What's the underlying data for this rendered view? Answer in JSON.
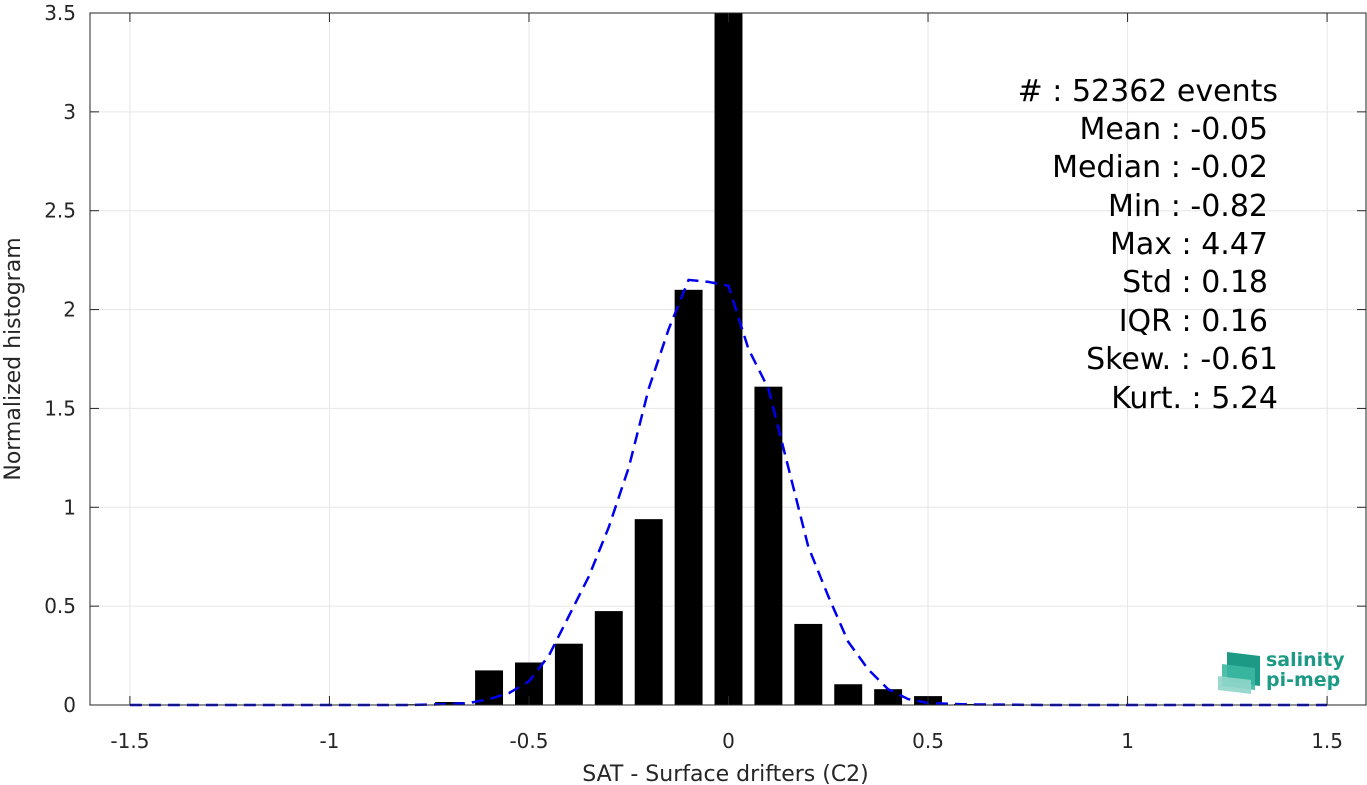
{
  "chart_data": {
    "type": "bar",
    "xlabel": "SAT - Surface drifters (C2)",
    "ylabel": "Normalized histogram",
    "xlim": [
      -1.6,
      1.6
    ],
    "ylim": [
      0,
      3.5
    ],
    "xticks": [
      -1.5,
      -1,
      -0.5,
      0,
      0.5,
      1,
      1.5
    ],
    "xtick_labels": [
      "-1.5",
      "-1",
      "-0.5",
      "0",
      "0.5",
      "1",
      "1.5"
    ],
    "yticks": [
      0,
      0.5,
      1,
      1.5,
      2,
      2.5,
      3,
      3.5
    ],
    "ytick_labels": [
      "0",
      "0.5",
      "1",
      "1.5",
      "2",
      "2.5",
      "3",
      "3.5"
    ],
    "grid": true,
    "bar_width": 0.07,
    "bars": {
      "x": [
        -0.8,
        -0.7,
        -0.6,
        -0.5,
        -0.4,
        -0.3,
        -0.2,
        -0.1,
        0.0,
        0.1,
        0.2,
        0.3,
        0.4,
        0.5,
        0.6
      ],
      "values": [
        0.004,
        0.015,
        0.175,
        0.215,
        0.31,
        0.475,
        0.94,
        2.1,
        3.5,
        1.61,
        0.41,
        0.105,
        0.08,
        0.045,
        0.005
      ]
    },
    "fit_curve": {
      "style": "dashed",
      "color": "#0000ee",
      "x": [
        -1.5,
        -1.2,
        -1.0,
        -0.9,
        -0.8,
        -0.75,
        -0.7,
        -0.65,
        -0.6,
        -0.55,
        -0.5,
        -0.45,
        -0.4,
        -0.35,
        -0.3,
        -0.25,
        -0.2,
        -0.15,
        -0.1,
        -0.05,
        0.0,
        0.05,
        0.1,
        0.15,
        0.2,
        0.25,
        0.3,
        0.35,
        0.4,
        0.45,
        0.5,
        0.6,
        0.8,
        1.0,
        1.5
      ],
      "y": [
        0.0,
        0.0,
        0.0,
        0.0,
        0.0,
        0.002,
        0.005,
        0.01,
        0.03,
        0.06,
        0.12,
        0.25,
        0.45,
        0.65,
        0.9,
        1.2,
        1.6,
        1.9,
        2.15,
        2.14,
        2.12,
        1.8,
        1.6,
        1.2,
        0.8,
        0.55,
        0.32,
        0.18,
        0.08,
        0.03,
        0.01,
        0.003,
        0.0,
        0.0,
        0.0
      ]
    },
    "annotation_lines": [
      "#  : 52362 events",
      "Mean : -0.05",
      "Median : -0.02",
      "Min : -0.82",
      "Max : 4.47",
      "Std : 0.18",
      "IQR : 0.16",
      "Skew. : -0.61",
      "Kurt. : 5.24"
    ]
  },
  "logo": {
    "line1": "salinity",
    "line2": "pi-mep",
    "color": "#1d9a86"
  }
}
